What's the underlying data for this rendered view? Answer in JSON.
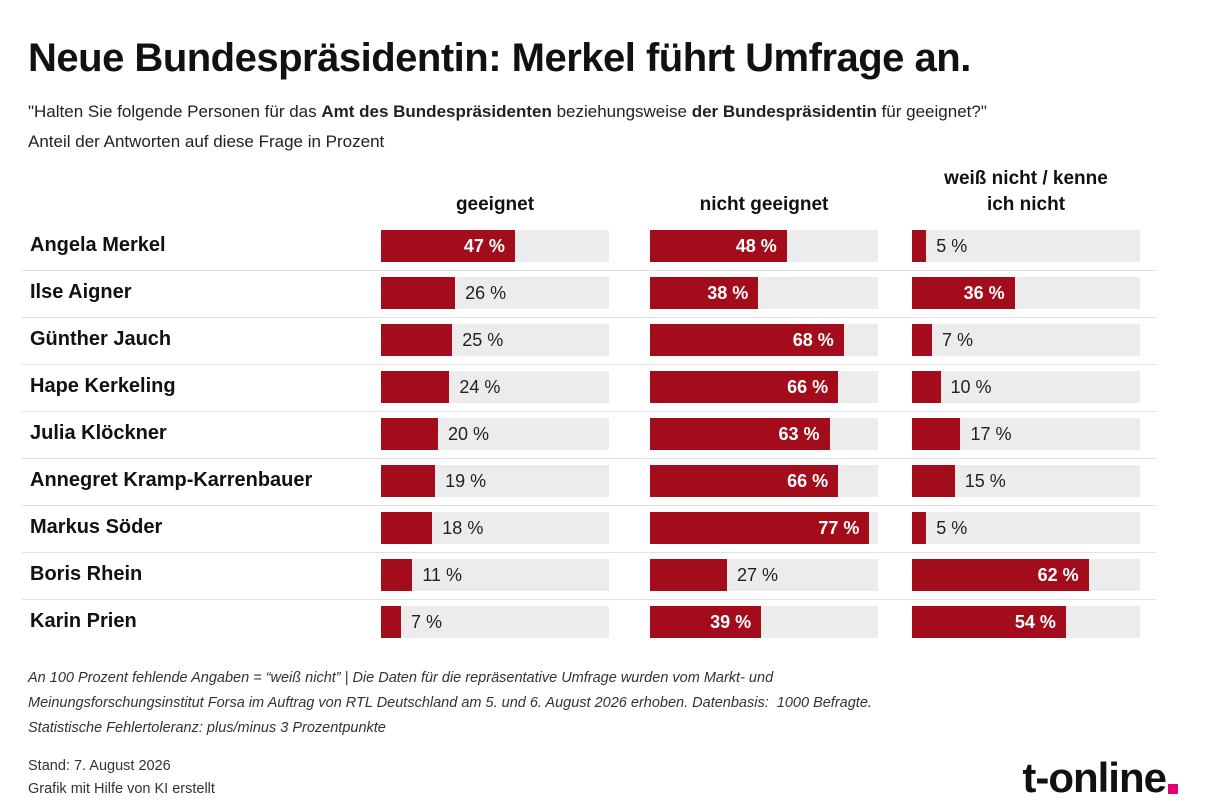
{
  "chart_data": {
    "type": "bar",
    "title": "Neue Bundespräsidentin: Merkel führt Umfrage an.",
    "subtitle": [
      "\"Halten Sie folgende Personen für das ",
      "Amt des Bundespräsidenten",
      " beziehungsweise ",
      "der Bundespräsidentin",
      " für geeignet?\""
    ],
    "subtitle2": "Anteil der Antworten auf diese Frage in Prozent",
    "categories": [
      "Angela Merkel",
      "Ilse Aigner",
      "Günther Jauch",
      "Hape Kerkeling",
      "Julia Klöckner",
      "Annegret Kramp-Karrenbauer",
      "Markus Söder",
      "Boris Rhein",
      "Karin Prien"
    ],
    "xlim": [
      0,
      80
    ],
    "series": [
      {
        "name": "geeignet",
        "color": "#a30d1b",
        "values": [
          47,
          26,
          25,
          24,
          20,
          19,
          18,
          11,
          7
        ],
        "value_labels": [
          "47 %",
          "26 %",
          "25 %",
          "24 %",
          "20 %",
          "19 %",
          "18 %",
          "11 %",
          "7 %"
        ]
      },
      {
        "name": "nicht geeignet",
        "color": "#a30d1b",
        "values": [
          48,
          38,
          68,
          66,
          63,
          66,
          77,
          27,
          39
        ],
        "value_labels": [
          "48 %",
          "38 %",
          "68 %",
          "66 %",
          "63 %",
          "66 %",
          "77 %",
          "27 %",
          "39 %"
        ]
      },
      {
        "name": "weiß nicht / kenne ich nicht",
        "color": "#a30d1b",
        "values": [
          5,
          36,
          7,
          10,
          17,
          15,
          5,
          62,
          54
        ],
        "value_labels": [
          "5 %",
          "36 %",
          "7 %",
          "10 %",
          "17 %",
          "15 %",
          "5 %",
          "62 %",
          "54 %"
        ]
      }
    ],
    "footnote": [
      "An 100 Prozent fehlende Angaben = “weiß nicht” | Die Daten für die repräsentative Umfrage wurden vom Markt- und",
      "Meinungsforschungsinstitut Forsa im Auftrag von RTL Deutschland am 5. und 6. August 2026 erhoben. Datenbasis:  1000 Befragte.",
      "Statistische Fehlertoleranz: plus/minus 3 Prozentpunkte"
    ],
    "stand": "Stand: 7. August 2026",
    "credit": "Grafik mit Hilfe von KI erstellt",
    "logo": "t-online"
  }
}
